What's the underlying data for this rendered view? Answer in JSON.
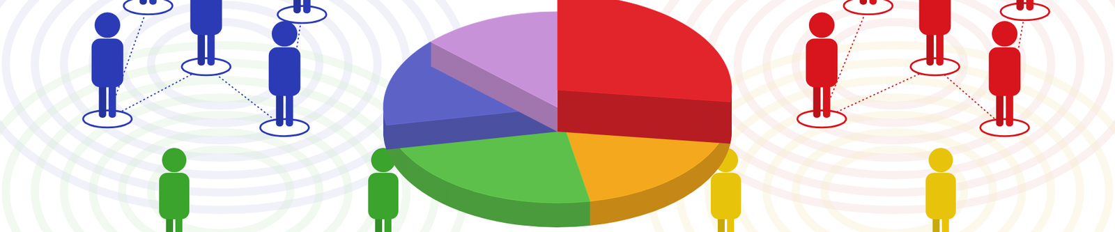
{
  "chart_data": {
    "type": "pie",
    "values": [
      27,
      20,
      25,
      15,
      13
    ],
    "colors": [
      "#e2242b",
      "#f4a81d",
      "#5cc04a",
      "#5d63c6",
      "#c892d8"
    ]
  }
}
